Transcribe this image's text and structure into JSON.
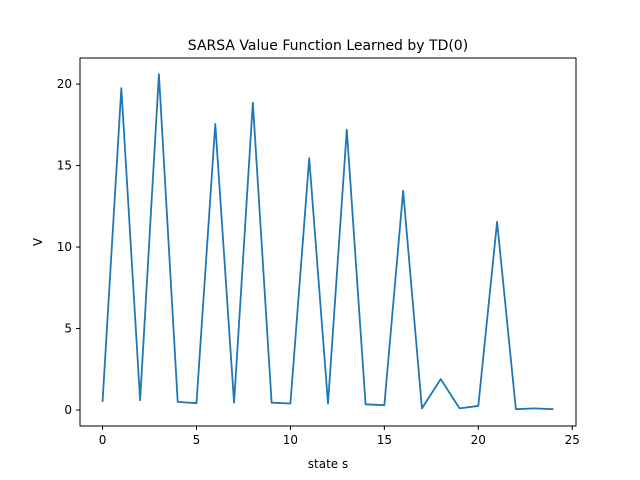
{
  "chart_data": {
    "type": "line",
    "title": "SARSA Value Function Learned by TD(0)",
    "xlabel": "state s",
    "ylabel": "V",
    "xlim": [
      -1.2,
      25.2
    ],
    "ylim": [
      -0.98,
      21.6
    ],
    "x_ticks": [
      0,
      5,
      10,
      15,
      20,
      25
    ],
    "y_ticks": [
      0,
      5,
      10,
      15,
      20
    ],
    "grid": false,
    "line_color": "#1f77b4",
    "series": [
      {
        "x": [
          0,
          1,
          2,
          3,
          4,
          5,
          6,
          7,
          8,
          9,
          10,
          11,
          12,
          13,
          14,
          15,
          16,
          17,
          18,
          19,
          20,
          21,
          22,
          23,
          24
        ],
        "values": [
          0.5,
          19.75,
          0.6,
          20.6,
          0.5,
          0.42,
          17.55,
          0.45,
          18.85,
          0.45,
          0.4,
          15.45,
          0.4,
          17.2,
          0.35,
          0.3,
          13.45,
          0.1,
          1.9,
          0.1,
          0.25,
          11.55,
          0.05,
          0.1,
          0.05
        ]
      }
    ]
  }
}
